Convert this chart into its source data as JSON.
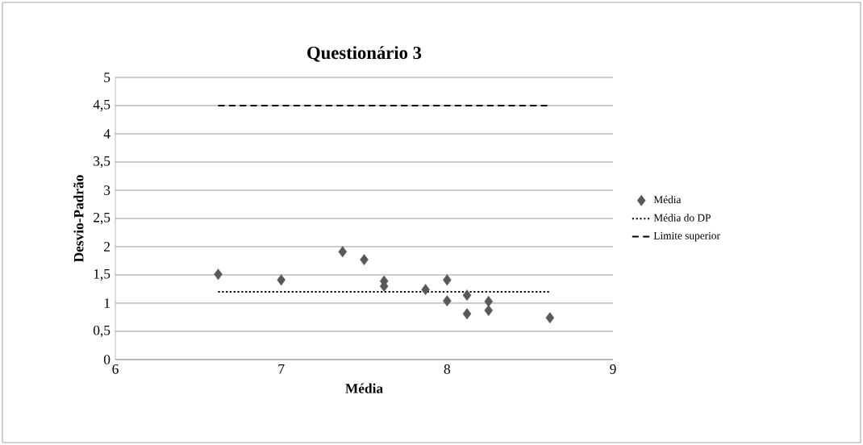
{
  "chart_data": {
    "type": "scatter",
    "title": "Questionário 3",
    "xlabel": "Média",
    "ylabel": "Desvio-Padrão",
    "xlim": [
      6,
      9
    ],
    "xticks": [
      6,
      7,
      8,
      9
    ],
    "ylim": [
      0,
      5
    ],
    "yticks": [
      {
        "value": 0,
        "label": "0"
      },
      {
        "value": 0.5,
        "label": "0,5"
      },
      {
        "value": 1,
        "label": "1"
      },
      {
        "value": 1.5,
        "label": "1,5"
      },
      {
        "value": 2,
        "label": "2"
      },
      {
        "value": 2.5,
        "label": "2,5"
      },
      {
        "value": 3,
        "label": "3"
      },
      {
        "value": 3.5,
        "label": "3,5"
      },
      {
        "value": 4,
        "label": "4"
      },
      {
        "value": 4.5,
        "label": "4,5"
      },
      {
        "value": 5,
        "label": "5"
      }
    ],
    "grid": "y",
    "legend": "right",
    "series": [
      {
        "name": "Média",
        "type": "scatter",
        "marker": "diamond",
        "color": "#595959",
        "x": [
          6.62,
          7,
          7.37,
          7.5,
          7.62,
          7.62,
          7.87,
          8,
          8,
          8.12,
          8.12,
          8.25,
          8.25,
          8.62
        ],
        "values": [
          1.51,
          1.41,
          1.91,
          1.77,
          1.39,
          1.3,
          1.24,
          1.41,
          1.04,
          1.14,
          0.81,
          1.03,
          0.87,
          0.74
        ]
      },
      {
        "name": "Média do DP",
        "type": "line",
        "line_style": "dotted",
        "color": "#000000",
        "x": [
          6.62,
          8.62
        ],
        "values": [
          1.2,
          1.2
        ]
      },
      {
        "name": "Limite superior",
        "type": "line",
        "line_style": "dashed",
        "color": "#000000",
        "x": [
          6.62,
          8.62
        ],
        "values": [
          4.5,
          4.5
        ]
      }
    ]
  }
}
